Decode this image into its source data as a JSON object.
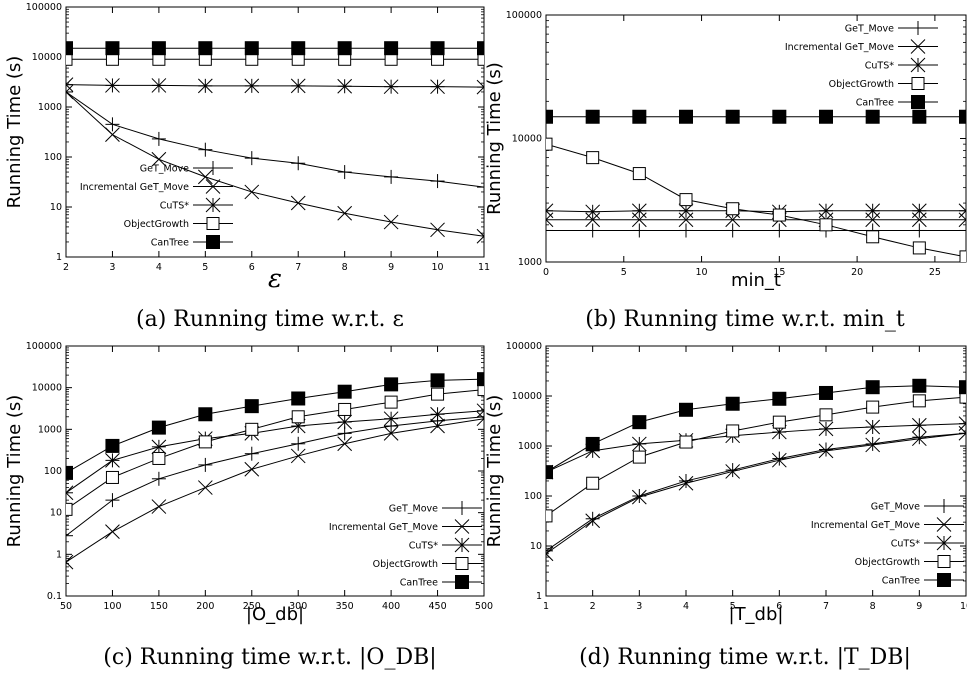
{
  "chart_data": [
    {
      "type": "line",
      "caption": "(a) Running time w.r.t. ε",
      "xlabel": "ε",
      "ylabel": "Running Time (s)",
      "yscale": "log",
      "xlim": [
        2,
        11
      ],
      "ylim": [
        1,
        100000
      ],
      "xticks": [
        "2",
        "3",
        "4",
        "5",
        "6",
        "7",
        "8",
        "9",
        "10",
        "11"
      ],
      "yticks": [
        "1",
        "10",
        "100",
        "1000",
        "10000",
        "100000"
      ],
      "legend_position": "center-left",
      "x": [
        2,
        3,
        4,
        5,
        6,
        7,
        8,
        9,
        10,
        11
      ],
      "series": [
        {
          "name": "GeT_Move",
          "marker": "plus",
          "values": [
            2000,
            450,
            230,
            140,
            95,
            75,
            50,
            40,
            33,
            25
          ]
        },
        {
          "name": "Incremental GeT_Move",
          "marker": "cross",
          "values": [
            2000,
            280,
            90,
            40,
            20,
            12,
            7.5,
            5,
            3.5,
            2.6
          ]
        },
        {
          "name": "CuTS*",
          "marker": "star",
          "values": [
            2800,
            2700,
            2700,
            2650,
            2650,
            2650,
            2600,
            2550,
            2550,
            2500
          ]
        },
        {
          "name": "ObjectGrowth",
          "marker": "square-open",
          "values": [
            9000,
            9000,
            9000,
            9000,
            9000,
            9000,
            9000,
            9000,
            9000,
            9000
          ]
        },
        {
          "name": "CanTree",
          "marker": "square-filled",
          "values": [
            15000,
            15000,
            15000,
            15000,
            15000,
            15000,
            15000,
            15000,
            15000,
            15000
          ]
        }
      ]
    },
    {
      "type": "line",
      "caption": "(b) Running time w.r.t. min_t",
      "xlabel": "min_t",
      "ylabel": "Running Time (s)",
      "yscale": "log",
      "xlim": [
        0,
        27
      ],
      "ylim": [
        1000,
        100000
      ],
      "xticks": [
        "0",
        "5",
        "10",
        "15",
        "20",
        "25"
      ],
      "yticks": [
        "1000",
        "10000",
        "100000"
      ],
      "legend_position": "top-right",
      "x": [
        0,
        3,
        6,
        9,
        12,
        15,
        18,
        21,
        24,
        27
      ],
      "series": [
        {
          "name": "GeT_Move",
          "marker": "plus",
          "values": [
            1800,
            1800,
            1800,
            1800,
            1800,
            1800,
            1800,
            1800,
            1800,
            1800
          ]
        },
        {
          "name": "Incremental GeT_Move",
          "marker": "cross",
          "values": [
            2200,
            2200,
            2200,
            2200,
            2200,
            2200,
            2200,
            2200,
            2200,
            2200
          ]
        },
        {
          "name": "CuTS*",
          "marker": "star",
          "values": [
            2600,
            2550,
            2600,
            2600,
            2600,
            2550,
            2600,
            2600,
            2600,
            2600
          ]
        },
        {
          "name": "ObjectGrowth",
          "marker": "square-open",
          "values": [
            9000,
            7000,
            5200,
            3200,
            2700,
            2400,
            2000,
            1600,
            1300,
            1100
          ]
        },
        {
          "name": "CanTree",
          "marker": "square-filled",
          "values": [
            15000,
            15000,
            15000,
            15000,
            15000,
            15000,
            15000,
            15000,
            15000,
            15000
          ]
        }
      ]
    },
    {
      "type": "line",
      "caption": "(c) Running time w.r.t. |O_DB|",
      "xlabel": "|O_db|",
      "ylabel": "Running Time (s)",
      "yscale": "log",
      "xlim": [
        50,
        500
      ],
      "ylim": [
        0.1,
        100000
      ],
      "xticks": [
        "50",
        "100",
        "150",
        "200",
        "250",
        "300",
        "350",
        "400",
        "450",
        "500"
      ],
      "yticks": [
        "0.1",
        "1",
        "10",
        "100",
        "1000",
        "10000",
        "100000"
      ],
      "legend_position": "bottom-right",
      "x": [
        50,
        100,
        150,
        200,
        250,
        300,
        350,
        400,
        450,
        500
      ],
      "series": [
        {
          "name": "GeT_Move",
          "marker": "plus",
          "values": [
            2.8,
            20,
            65,
            140,
            260,
            450,
            800,
            1200,
            1600,
            2000
          ]
        },
        {
          "name": "Incremental GeT_Move",
          "marker": "cross",
          "values": [
            0.65,
            3.5,
            14,
            40,
            110,
            230,
            450,
            800,
            1200,
            1800
          ]
        },
        {
          "name": "CuTS*",
          "marker": "star",
          "values": [
            30,
            180,
            380,
            600,
            800,
            1200,
            1500,
            1800,
            2300,
            2800
          ]
        },
        {
          "name": "ObjectGrowth",
          "marker": "square-open",
          "values": [
            12,
            70,
            200,
            500,
            1000,
            2000,
            3000,
            4500,
            7000,
            9000
          ]
        },
        {
          "name": "CanTree",
          "marker": "square-filled",
          "values": [
            90,
            400,
            1100,
            2300,
            3600,
            5500,
            8000,
            12000,
            15000,
            16000
          ]
        }
      ]
    },
    {
      "type": "line",
      "caption": "(d) Running time w.r.t. |T_DB|",
      "xlabel": "|T_db|",
      "ylabel": "Running Time (s)",
      "yscale": "log",
      "xlim": [
        1,
        10
      ],
      "ylim": [
        1,
        100000
      ],
      "xticks": [
        "1",
        "2",
        "3",
        "4",
        "5",
        "6",
        "7",
        "8",
        "9",
        "10"
      ],
      "yticks": [
        "1",
        "10",
        "100",
        "1000",
        "10000",
        "100000"
      ],
      "legend_position": "bottom-right",
      "x": [
        1,
        2,
        3,
        4,
        5,
        6,
        7,
        8,
        9,
        10
      ],
      "series": [
        {
          "name": "GeT_Move",
          "marker": "plus",
          "values": [
            8,
            35,
            100,
            200,
            330,
            560,
            850,
            1100,
            1500,
            1800
          ]
        },
        {
          "name": "Incremental GeT_Move",
          "marker": "cross",
          "values": [
            7,
            32,
            95,
            180,
            310,
            520,
            800,
            1050,
            1400,
            1800
          ]
        },
        {
          "name": "CuTS*",
          "marker": "star",
          "values": [
            300,
            800,
            1100,
            1300,
            1600,
            1900,
            2200,
            2400,
            2600,
            2800
          ]
        },
        {
          "name": "ObjectGrowth",
          "marker": "square-open",
          "values": [
            40,
            180,
            600,
            1200,
            2000,
            3000,
            4200,
            6000,
            8000,
            9500
          ]
        },
        {
          "name": "CanTree",
          "marker": "square-filled",
          "values": [
            300,
            1100,
            3000,
            5300,
            7000,
            8800,
            11500,
            15000,
            16000,
            15000
          ]
        }
      ]
    }
  ]
}
